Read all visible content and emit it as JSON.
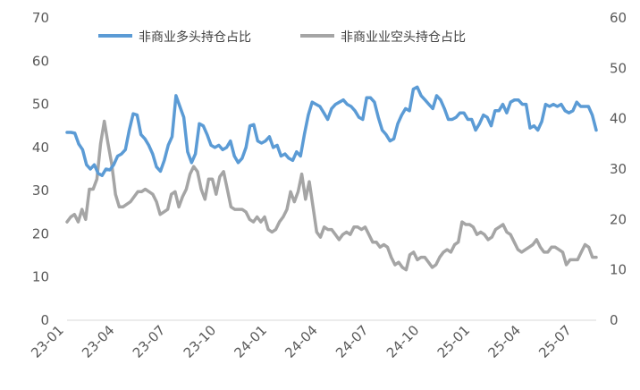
{
  "chart_data": {
    "type": "line",
    "x_ticks": [
      "23-01",
      "23-04",
      "23-07",
      "23-10",
      "24-01",
      "24-04",
      "24-07",
      "24-10",
      "25-01",
      "25-04",
      "25-07"
    ],
    "y_left": {
      "min": 0,
      "max": 70,
      "ticks": [
        "0",
        "10",
        "20",
        "30",
        "40",
        "50",
        "60",
        "70"
      ]
    },
    "y_right": {
      "min": 0,
      "max": 60,
      "ticks": [
        "0",
        "10",
        "20",
        "30",
        "40",
        "50",
        "60"
      ]
    },
    "legend_position": "top",
    "series": [
      {
        "name": "非商业多头持仓占比",
        "axis": "left",
        "color": "#5B9BD5",
        "values": [
          43.5,
          43.5,
          43.3,
          40.8,
          39.5,
          36.0,
          35.0,
          36.0,
          34.0,
          33.5,
          35.0,
          34.8,
          36.0,
          38.0,
          38.5,
          39.5,
          44.0,
          47.8,
          47.5,
          43.0,
          42.0,
          40.5,
          38.5,
          35.5,
          34.5,
          37.0,
          40.5,
          42.5,
          52.0,
          49.5,
          47.0,
          39.0,
          36.5,
          38.5,
          45.5,
          45.0,
          43.0,
          40.5,
          40.0,
          40.5,
          39.5,
          40.0,
          41.5,
          38.0,
          36.5,
          37.5,
          40.0,
          45.0,
          45.3,
          41.5,
          41.0,
          41.5,
          42.5,
          40.0,
          40.5,
          38.0,
          38.5,
          37.5,
          37.0,
          39.0,
          38.0,
          43.0,
          47.5,
          50.5,
          50.0,
          49.5,
          48.0,
          46.5,
          49.0,
          50.0,
          50.5,
          51.0,
          50.0,
          49.5,
          48.5,
          47.0,
          46.5,
          51.5,
          51.5,
          50.5,
          47.0,
          44.0,
          43.0,
          41.5,
          42.0,
          45.5,
          47.5,
          49.0,
          48.5,
          53.5,
          54.0,
          52.0,
          51.0,
          50.0,
          49.0,
          52.0,
          51.0,
          49.0,
          46.5,
          46.5,
          47.0,
          48.0,
          48.0,
          46.5,
          46.5,
          44.0,
          45.5,
          47.5,
          47.0,
          45.0,
          48.5,
          48.5,
          50.0,
          48.0,
          50.5,
          51.0,
          51.0,
          50.0,
          50.0,
          44.5,
          45.0,
          44.0,
          46.0,
          50.0,
          49.5,
          50.0,
          49.5,
          50.0,
          48.5,
          48.0,
          48.5,
          50.5,
          49.5,
          49.5,
          49.5,
          47.5,
          44.0
        ]
      },
      {
        "name": "非商业业空头持仓占比",
        "axis": "right",
        "color": "#A5A5A5",
        "values": [
          19.5,
          20.5,
          21.0,
          19.5,
          22.0,
          20.0,
          26.0,
          26.0,
          28.0,
          35.0,
          39.5,
          35.0,
          31.0,
          25.0,
          22.5,
          22.5,
          23.0,
          23.5,
          24.5,
          25.5,
          25.5,
          26.0,
          25.5,
          25.0,
          23.5,
          21.0,
          21.5,
          22.0,
          25.0,
          25.5,
          22.5,
          24.5,
          26.0,
          29.0,
          30.5,
          29.5,
          26.0,
          24.0,
          28.0,
          28.0,
          25.0,
          28.5,
          29.5,
          26.0,
          22.5,
          22.0,
          22.0,
          22.0,
          21.5,
          20.0,
          19.5,
          20.5,
          19.5,
          20.5,
          18.0,
          17.5,
          18.0,
          19.5,
          20.5,
          22.0,
          25.5,
          23.5,
          25.5,
          29.0,
          24.0,
          27.5,
          22.5,
          17.5,
          16.5,
          18.5,
          18.0,
          18.0,
          17.0,
          16.0,
          17.0,
          17.5,
          17.0,
          18.5,
          18.5,
          18.0,
          18.5,
          17.0,
          15.5,
          15.5,
          14.5,
          15.0,
          14.5,
          12.5,
          11.0,
          11.5,
          10.5,
          10.0,
          13.0,
          13.5,
          12.0,
          12.5,
          12.5,
          11.5,
          10.5,
          11.0,
          12.5,
          13.5,
          14.0,
          13.5,
          15.0,
          15.5,
          19.5,
          19.0,
          19.0,
          18.5,
          17.0,
          17.5,
          17.0,
          16.0,
          16.5,
          18.0,
          18.5,
          19.0,
          17.5,
          17.0,
          15.5,
          14.0,
          13.5,
          14.0,
          14.5,
          15.0,
          16.0,
          14.5,
          13.5,
          13.5,
          14.5,
          14.5,
          14.0,
          13.5,
          11.0,
          12.0,
          12.0,
          12.0,
          13.5,
          15.0,
          14.5,
          12.5,
          12.5
        ]
      }
    ]
  }
}
